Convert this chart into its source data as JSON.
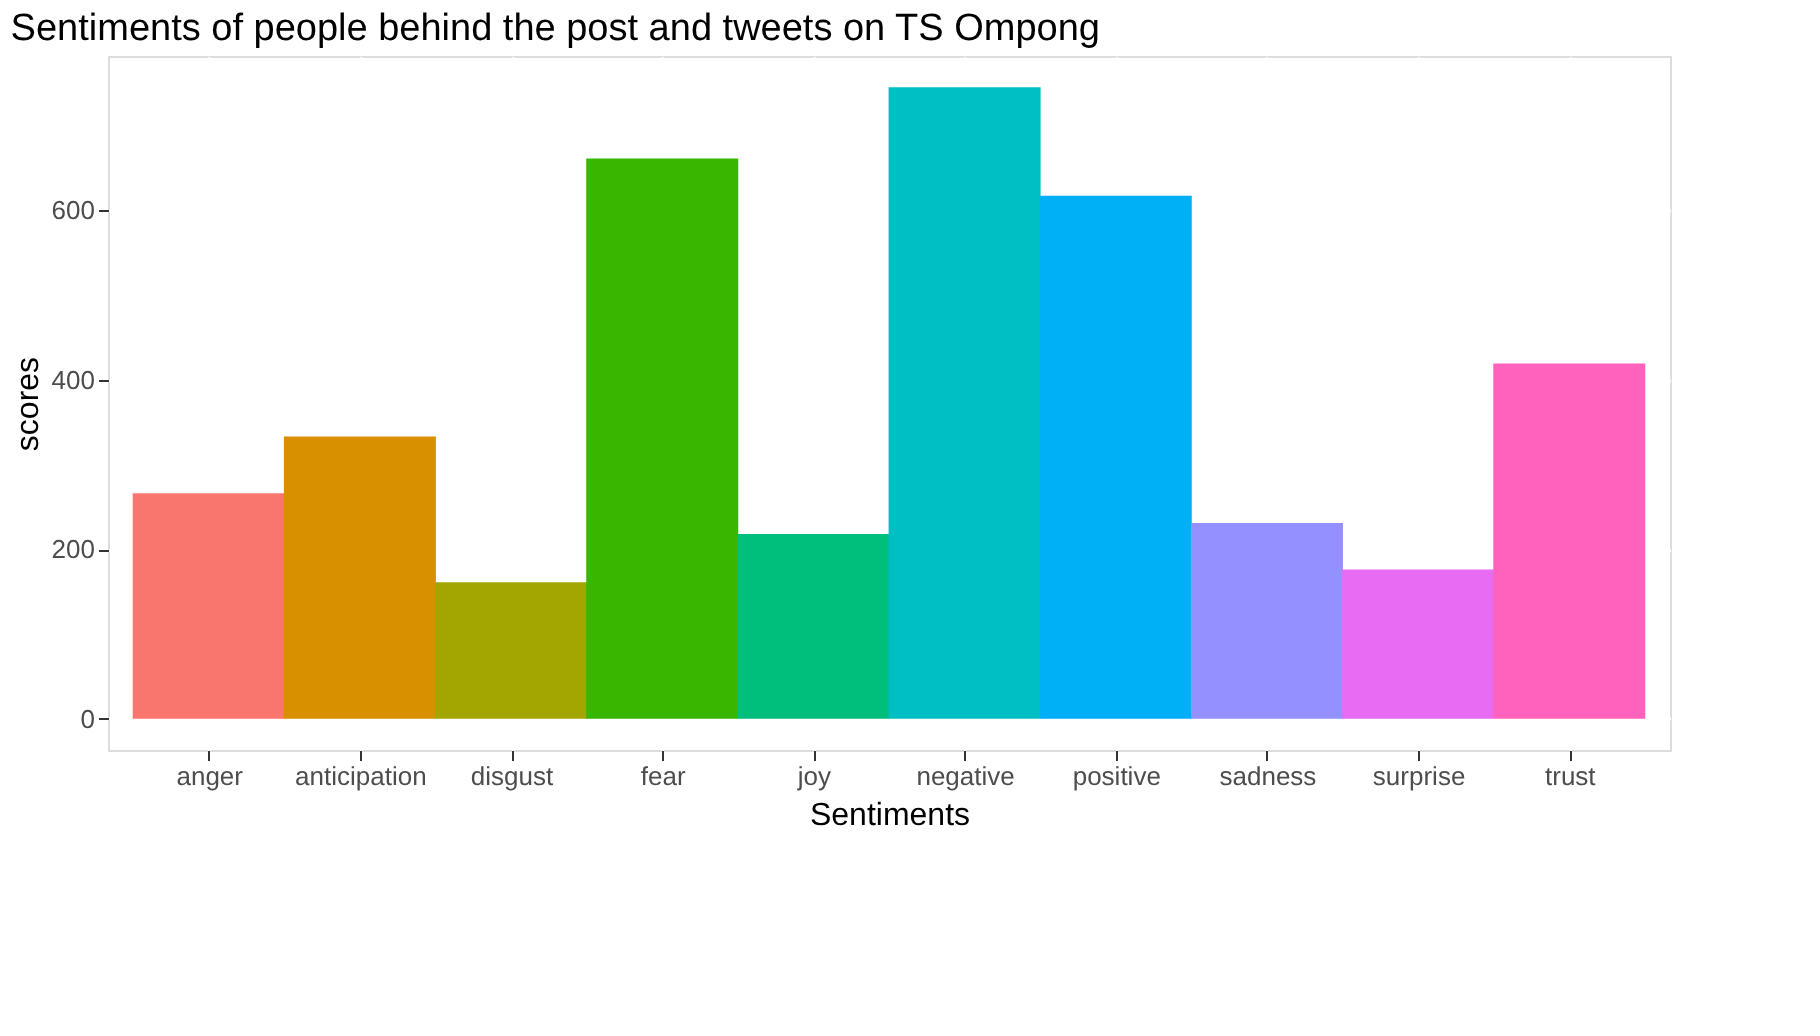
{
  "chart_data": {
    "type": "bar",
    "title": "Sentiments of people behind the post and tweets on TS Ompong",
    "xlabel": "Sentiments",
    "ylabel": "scores",
    "categories": [
      "anger",
      "anticipation",
      "disgust",
      "fear",
      "joy",
      "negative",
      "positive",
      "sadness",
      "surprise",
      "trust"
    ],
    "values": [
      266,
      333,
      161,
      661,
      218,
      745,
      617,
      231,
      176,
      419
    ],
    "colors": [
      "#f8766d",
      "#d89000",
      "#a3a500",
      "#39b600",
      "#00bf7d",
      "#00bfc4",
      "#00b0f6",
      "#9590ff",
      "#e76bf3",
      "#ff62bc"
    ],
    "ylim": [
      -37,
      782
    ],
    "yticks": [
      0,
      200,
      400,
      600
    ],
    "grid": true
  }
}
